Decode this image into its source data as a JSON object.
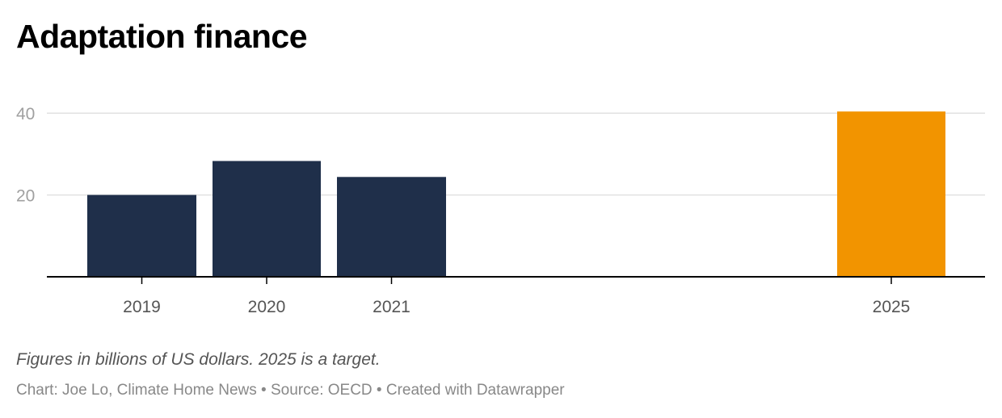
{
  "title": "Adaptation finance",
  "notes": "Figures in billions of US dollars. 2025 is a target.",
  "credits": {
    "author": "Chart: Joe Lo, Climate Home News",
    "separator": " • ",
    "source": "Source: OECD",
    "tool": "Created with Datawrapper"
  },
  "colors": {
    "actual": "#1f2f4a",
    "target": "#f29400",
    "grid": "#e1e1e1",
    "baseline": "#000000",
    "tick_label": "#a0a0a0",
    "category_label": "#555555"
  },
  "chart_data": {
    "type": "bar",
    "categories": [
      "2019",
      "2020",
      "2021",
      "2025"
    ],
    "values": [
      20,
      28.3,
      24.4,
      40.4
    ],
    "bar_colors": [
      "#1f2f4a",
      "#1f2f4a",
      "#1f2f4a",
      "#f29400"
    ],
    "yticks": [
      20,
      40
    ],
    "ylim": [
      0,
      40.4
    ],
    "grid": true,
    "title": "Adaptation finance",
    "xlabel": "",
    "ylabel": ""
  }
}
